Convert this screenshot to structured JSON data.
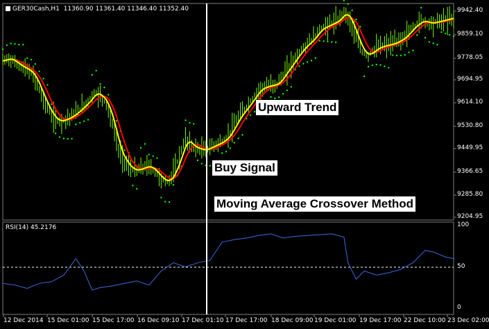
{
  "header": {
    "symbol": "GER30Cash,H1",
    "ohlc": "11360.90 11361.40 11346.40 11352.40"
  },
  "annotations": {
    "upward_trend": "Upward Trend",
    "buy_signal": "Buy Signal",
    "method": "Moving Average Crossover Method"
  },
  "colors": {
    "background": "#000000",
    "price_bars": "#7CFC00",
    "ma_fast": "#FFFF00",
    "ma_slow": "#FF0000",
    "sar_dots": "#00FF00",
    "rsi_line": "#4169E1",
    "crosshair": "#FFFFFF"
  },
  "price_axis": {
    "ticks": [
      "9942.40",
      "9859.10",
      "9778.05",
      "9694.95",
      "9614.10",
      "9530.80",
      "9449.95",
      "9366.65",
      "9285.80",
      "9204.95"
    ]
  },
  "rsi_panel": {
    "title": "RSI(14) 45.2176",
    "ticks": [
      "100",
      "50",
      "0"
    ],
    "level": 50,
    "ylim": [
      0,
      100
    ]
  },
  "time_axis": {
    "labels": [
      "12 Dec 2014",
      "15 Dec 01:00",
      "15 Dec 17:00",
      "16 Dec 09:10",
      "17 Dec 01:10",
      "17 Dec 17:00",
      "18 Dec 09:00",
      "19 Dec 01:00",
      "19 Dec 17:00",
      "22 Dec 10:00",
      "23 Dec 02:00"
    ]
  },
  "chart_data": {
    "type": "line",
    "price_range": [
      9204.95,
      9942.4
    ],
    "price_series": [
      [
        0,
        9750
      ],
      [
        3,
        9760
      ],
      [
        6,
        9745
      ],
      [
        9,
        9730
      ],
      [
        12,
        9720
      ],
      [
        15,
        9700
      ],
      [
        18,
        9650
      ],
      [
        21,
        9600
      ],
      [
        24,
        9560
      ],
      [
        27,
        9540
      ],
      [
        30,
        9545
      ],
      [
        33,
        9555
      ],
      [
        36,
        9570
      ],
      [
        39,
        9590
      ],
      [
        42,
        9610
      ],
      [
        45,
        9640
      ],
      [
        48,
        9630
      ],
      [
        51,
        9600
      ],
      [
        54,
        9530
      ],
      [
        57,
        9440
      ],
      [
        60,
        9400
      ],
      [
        63,
        9375
      ],
      [
        66,
        9370
      ],
      [
        69,
        9380
      ],
      [
        72,
        9385
      ],
      [
        75,
        9365
      ],
      [
        78,
        9340
      ],
      [
        81,
        9330
      ],
      [
        84,
        9360
      ],
      [
        87,
        9420
      ],
      [
        90,
        9480
      ],
      [
        93,
        9455
      ],
      [
        96,
        9445
      ],
      [
        99,
        9440
      ],
      [
        102,
        9450
      ],
      [
        105,
        9460
      ],
      [
        108,
        9470
      ],
      [
        111,
        9490
      ],
      [
        114,
        9530
      ],
      [
        117,
        9565
      ],
      [
        120,
        9590
      ],
      [
        123,
        9620
      ],
      [
        126,
        9650
      ],
      [
        129,
        9660
      ],
      [
        132,
        9665
      ],
      [
        135,
        9670
      ],
      [
        138,
        9700
      ],
      [
        141,
        9730
      ],
      [
        144,
        9760
      ],
      [
        147,
        9790
      ],
      [
        150,
        9810
      ],
      [
        153,
        9830
      ],
      [
        156,
        9860
      ],
      [
        159,
        9870
      ],
      [
        162,
        9880
      ],
      [
        165,
        9890
      ],
      [
        168,
        9920
      ],
      [
        171,
        9890
      ],
      [
        174,
        9830
      ],
      [
        177,
        9780
      ],
      [
        180,
        9770
      ],
      [
        183,
        9790
      ],
      [
        186,
        9800
      ],
      [
        189,
        9805
      ],
      [
        192,
        9810
      ],
      [
        195,
        9820
      ],
      [
        198,
        9835
      ],
      [
        201,
        9860
      ],
      [
        204,
        9880
      ],
      [
        207,
        9890
      ],
      [
        210,
        9880
      ],
      [
        213,
        9885
      ],
      [
        216,
        9890
      ],
      [
        219,
        9895
      ],
      [
        222,
        9900
      ]
    ],
    "rsi_series": [
      [
        0,
        30
      ],
      [
        6,
        28
      ],
      [
        12,
        24
      ],
      [
        18,
        30
      ],
      [
        24,
        32
      ],
      [
        30,
        40
      ],
      [
        36,
        60
      ],
      [
        40,
        45
      ],
      [
        44,
        22
      ],
      [
        48,
        25
      ],
      [
        54,
        27
      ],
      [
        60,
        30
      ],
      [
        66,
        33
      ],
      [
        72,
        28
      ],
      [
        78,
        45
      ],
      [
        84,
        55
      ],
      [
        90,
        50
      ],
      [
        96,
        55
      ],
      [
        102,
        58
      ],
      [
        108,
        80
      ],
      [
        114,
        83
      ],
      [
        120,
        85
      ],
      [
        126,
        88
      ],
      [
        132,
        90
      ],
      [
        138,
        85
      ],
      [
        144,
        87
      ],
      [
        150,
        88
      ],
      [
        156,
        89
      ],
      [
        162,
        90
      ],
      [
        168,
        86
      ],
      [
        170,
        55
      ],
      [
        174,
        35
      ],
      [
        178,
        45
      ],
      [
        184,
        40
      ],
      [
        190,
        43
      ],
      [
        196,
        47
      ],
      [
        202,
        55
      ],
      [
        208,
        70
      ],
      [
        212,
        68
      ],
      [
        218,
        62
      ],
      [
        222,
        60
      ]
    ]
  }
}
